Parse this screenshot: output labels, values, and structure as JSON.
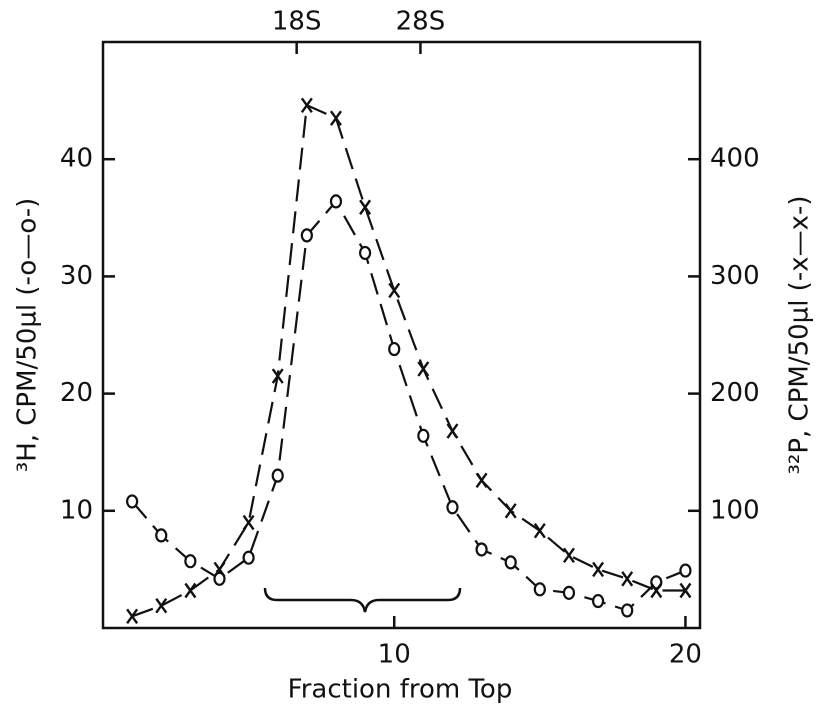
{
  "chart_data": {
    "type": "line",
    "x_label": "Fraction from Top",
    "y_label": "³H, CPM/50µl (-o—o-)",
    "y2_label": "³²P, CPM/50µl (-x—x-)",
    "x": [
      1,
      2,
      3,
      4,
      5,
      6,
      7,
      8,
      9,
      10,
      11,
      12,
      13,
      14,
      15,
      16,
      17,
      18,
      19,
      20
    ],
    "series": [
      {
        "name": "³H",
        "marker": "o",
        "color": "#111111",
        "axis": "y",
        "values": [
          10.8,
          7.9,
          5.7,
          4.2,
          6.0,
          13.0,
          33.5,
          36.4,
          32.0,
          23.8,
          16.4,
          10.3,
          6.7,
          5.6,
          3.3,
          3.0,
          2.3,
          1.5,
          3.9,
          4.9
        ]
      },
      {
        "name": "³²P",
        "marker": "x",
        "color": "#111111",
        "axis": "y2",
        "values": [
          10,
          19,
          32,
          50,
          90,
          215,
          446,
          435,
          359,
          288,
          221,
          168,
          126,
          100,
          83,
          62,
          50,
          42,
          32,
          32
        ]
      }
    ],
    "xlim": [
      0,
      20.5
    ],
    "xticks": [
      10,
      20
    ],
    "ylim": [
      0,
      50
    ],
    "yticks": [
      10,
      20,
      30,
      40
    ],
    "y2lim": [
      0,
      500
    ],
    "y2ticks": [
      100,
      200,
      300,
      400
    ],
    "top_markers": [
      {
        "value": 6.65,
        "label": "18S"
      },
      {
        "value": 10.9,
        "label": "28S"
      }
    ]
  }
}
